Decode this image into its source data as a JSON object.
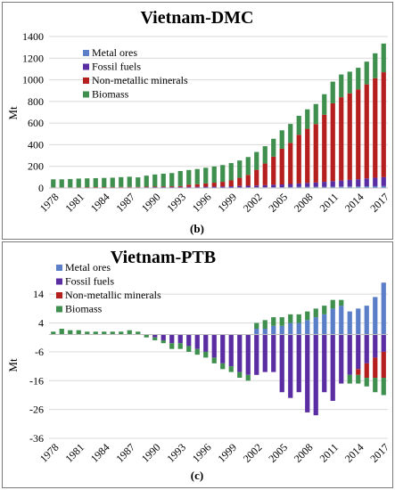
{
  "chart_data": [
    {
      "id": "dmc",
      "type": "bar",
      "stacked": true,
      "title": "Vietnam-DMC",
      "ylabel": "Mt",
      "xlabel": "",
      "caption": "(b)",
      "ylim": [
        0,
        1400
      ],
      "yticks": [
        0,
        200,
        400,
        600,
        800,
        1000,
        1200,
        1400
      ],
      "x_tick_labels": [
        "1978",
        "1981",
        "1984",
        "1987",
        "1990",
        "1993",
        "1996",
        "1999",
        "2002",
        "2005",
        "2008",
        "2011",
        "2014",
        "2017"
      ],
      "legend_position": "top-left",
      "categories": [
        "1978",
        "1979",
        "1980",
        "1981",
        "1982",
        "1983",
        "1984",
        "1985",
        "1986",
        "1987",
        "1988",
        "1989",
        "1990",
        "1991",
        "1992",
        "1993",
        "1994",
        "1995",
        "1996",
        "1997",
        "1998",
        "1999",
        "2000",
        "2001",
        "2002",
        "2003",
        "2004",
        "2005",
        "2006",
        "2007",
        "2008",
        "2009",
        "2010",
        "2011",
        "2012",
        "2013",
        "2014",
        "2015",
        "2016",
        "2017"
      ],
      "series": [
        {
          "name": "Metal ores",
          "color": "#5b7ec9",
          "values": [
            1,
            1,
            1,
            1,
            1,
            1,
            1,
            1,
            1,
            1,
            1,
            1,
            2,
            2,
            2,
            2,
            3,
            3,
            3,
            3,
            4,
            4,
            5,
            6,
            6,
            7,
            8,
            8,
            9,
            10,
            11,
            11,
            12,
            13,
            14,
            15,
            15,
            16,
            17,
            18
          ]
        },
        {
          "name": "Fossil fuels",
          "color": "#5b2da3",
          "values": [
            3,
            3,
            3,
            4,
            4,
            4,
            4,
            5,
            5,
            5,
            5,
            6,
            6,
            6,
            7,
            7,
            8,
            8,
            9,
            10,
            11,
            12,
            14,
            15,
            17,
            19,
            22,
            25,
            28,
            32,
            36,
            40,
            45,
            50,
            55,
            60,
            66,
            72,
            78,
            82
          ]
        },
        {
          "name": "Non-metallic minerals",
          "color": "#b5201f",
          "values": [
            2,
            2,
            2,
            2,
            3,
            3,
            3,
            3,
            4,
            4,
            4,
            5,
            5,
            6,
            7,
            8,
            20,
            24,
            30,
            36,
            42,
            54,
            75,
            100,
            145,
            200,
            260,
            330,
            380,
            450,
            500,
            540,
            620,
            720,
            770,
            800,
            830,
            870,
            920,
            970
          ]
        },
        {
          "name": "Biomass",
          "color": "#3f8f4f",
          "values": [
            74,
            74,
            77,
            80,
            81,
            83,
            85,
            86,
            90,
            94,
            88,
            102,
            112,
            118,
            122,
            140,
            135,
            140,
            145,
            150,
            155,
            160,
            160,
            165,
            165,
            160,
            165,
            170,
            175,
            175,
            180,
            185,
            190,
            200,
            210,
            200,
            200,
            210,
            230,
            265
          ]
        }
      ]
    },
    {
      "id": "ptb",
      "type": "bar",
      "stacked": true,
      "title": "Vietnam-PTB",
      "ylabel": "Mt",
      "xlabel": "",
      "caption": "(c)",
      "ylim": [
        -36,
        19
      ],
      "yticks": [
        -36,
        -26,
        -16,
        -6,
        4,
        14
      ],
      "x_tick_labels": [
        "1978",
        "1981",
        "1984",
        "1987",
        "1990",
        "1993",
        "1996",
        "1999",
        "2002",
        "2005",
        "2008",
        "2011",
        "2014",
        "2017"
      ],
      "legend_position": "top-left",
      "categories": [
        "1978",
        "1979",
        "1980",
        "1981",
        "1982",
        "1983",
        "1984",
        "1985",
        "1986",
        "1987",
        "1988",
        "1989",
        "1990",
        "1991",
        "1992",
        "1993",
        "1994",
        "1995",
        "1996",
        "1997",
        "1998",
        "1999",
        "2000",
        "2001",
        "2002",
        "2003",
        "2004",
        "2005",
        "2006",
        "2007",
        "2008",
        "2009",
        "2010",
        "2011",
        "2012",
        "2013",
        "2014",
        "2015",
        "2016",
        "2017"
      ],
      "series": [
        {
          "name": "Metal ores",
          "color": "#5b7ec9",
          "values": [
            0,
            0,
            0,
            0,
            0,
            0,
            0,
            0,
            0,
            0,
            0,
            0,
            0,
            0,
            0,
            0,
            0,
            0,
            0,
            0,
            0,
            0,
            0,
            0,
            2,
            2,
            3,
            3,
            4,
            4,
            5,
            6,
            7,
            9,
            10,
            8,
            9,
            10,
            13,
            18
          ]
        },
        {
          "name": "Fossil fuels",
          "color": "#5b2da3",
          "values": [
            0,
            0,
            0,
            0,
            0,
            0,
            0,
            0,
            0,
            0,
            0,
            0,
            -1,
            -2,
            -3,
            -3,
            -4,
            -5,
            -6,
            -8,
            -10,
            -11,
            -13,
            -14,
            -14,
            -13,
            -13,
            -20,
            -22,
            -20,
            -27,
            -28,
            -20,
            -23,
            -17,
            -14,
            -12,
            -10,
            -8,
            -6
          ]
        },
        {
          "name": "Non-metallic minerals",
          "color": "#b5201f",
          "values": [
            0,
            0,
            0,
            0,
            0,
            0,
            0,
            0,
            0,
            0,
            0,
            0,
            0,
            0,
            0,
            0,
            0,
            0,
            0,
            0,
            0,
            0,
            0,
            0,
            0,
            0,
            0,
            0,
            0,
            0,
            0,
            0,
            0,
            0,
            0,
            0,
            -2,
            -5,
            -7,
            -9
          ]
        },
        {
          "name": "Biomass",
          "color": "#3f8f4f",
          "values": [
            1,
            2,
            1.5,
            1.5,
            1,
            1,
            1,
            1,
            1,
            1.5,
            1,
            -1,
            -1,
            -1,
            -2,
            -2,
            -2,
            -2,
            -2,
            -2,
            -2,
            -2,
            -2,
            -2,
            2,
            3,
            3,
            3,
            3,
            3,
            3,
            3,
            3,
            3,
            2,
            -3,
            -3,
            -3,
            -5,
            -6
          ]
        }
      ]
    }
  ]
}
